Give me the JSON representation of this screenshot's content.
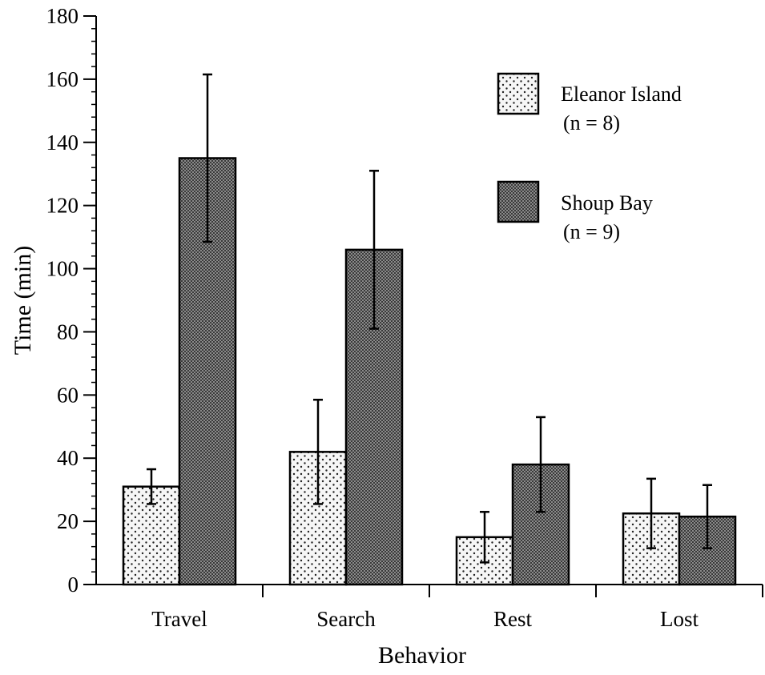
{
  "chart_data": {
    "type": "bar",
    "categories": [
      "Travel",
      "Search",
      "Rest",
      "Lost"
    ],
    "series": [
      {
        "name": "Eleanor Island",
        "n_label": "(n = 8)",
        "pattern": "sparse-dots",
        "values": [
          31,
          42,
          15,
          22.5
        ],
        "errors": [
          5.5,
          16.5,
          8,
          11
        ]
      },
      {
        "name": "Shoup Bay",
        "n_label": "(n = 9)",
        "pattern": "dense-crosshatch",
        "values": [
          135,
          106,
          38,
          21.5
        ],
        "errors": [
          26.5,
          25,
          15,
          10
        ]
      }
    ],
    "xlabel": "Behavior",
    "ylabel": "Time (min)",
    "ylim": [
      0,
      180
    ],
    "yticks": [
      "0",
      "20",
      "40",
      "60",
      "80",
      "100",
      "120",
      "140",
      "160",
      "180"
    ],
    "minor_tick_step": 4,
    "grid": false,
    "legend_position": "top-right",
    "colors": {
      "ink": "#000000",
      "background": "#ffffff",
      "light_fill": "#f6f6f6",
      "dark_fill": "#6a6a6a"
    }
  }
}
